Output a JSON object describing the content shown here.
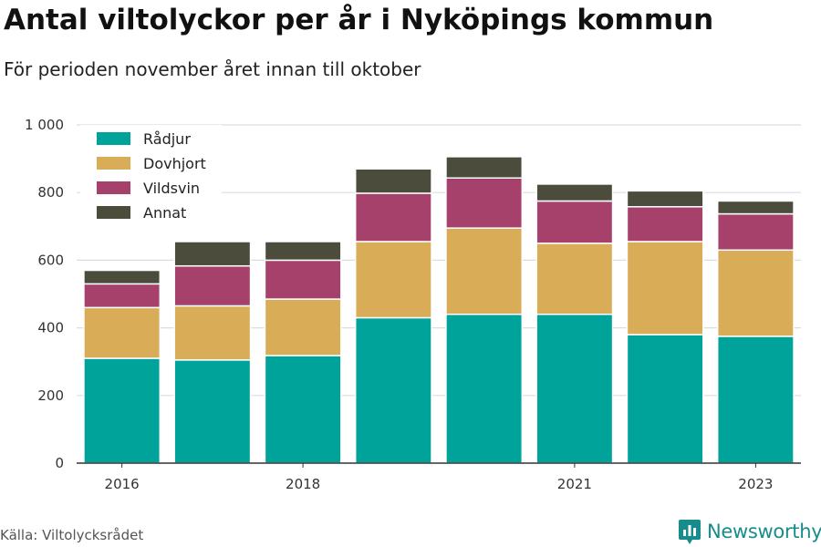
{
  "title": "Antal viltolyckor per år i Nyköpings kommun",
  "subtitle": "För perioden november året innan till oktober",
  "source": "Källa: Viltolycksrådet",
  "brand": {
    "name": "Newsworthy",
    "icon": "bar-chart-badge-icon",
    "color": "#178c8c"
  },
  "chart_data": {
    "type": "bar",
    "stacked": true,
    "categories": [
      "2016",
      "2017",
      "2018",
      "2019",
      "2020",
      "2021",
      "2022",
      "2023"
    ],
    "x_tick_labels": [
      "2016",
      "",
      "2018",
      "",
      "",
      "2021",
      "",
      "2023"
    ],
    "series": [
      {
        "name": "Rådjur",
        "color": "#00a39a",
        "values": [
          310,
          305,
          318,
          430,
          440,
          440,
          380,
          375
        ]
      },
      {
        "name": "Dovhjort",
        "color": "#d9ac58",
        "values": [
          150,
          160,
          167,
          225,
          255,
          210,
          275,
          255
        ]
      },
      {
        "name": "Vildsvin",
        "color": "#a5416a",
        "values": [
          70,
          118,
          115,
          143,
          148,
          125,
          103,
          107
        ]
      },
      {
        "name": "Annat",
        "color": "#4c4c3d",
        "values": [
          40,
          72,
          55,
          72,
          63,
          50,
          47,
          38
        ]
      }
    ],
    "ylim": [
      0,
      1000
    ],
    "y_ticks": [
      0,
      200,
      400,
      600,
      800,
      1000
    ],
    "y_tick_labels": [
      "0",
      "200",
      "400",
      "600",
      "800",
      "1 000"
    ],
    "grid": true,
    "legend_position": "top-left"
  }
}
